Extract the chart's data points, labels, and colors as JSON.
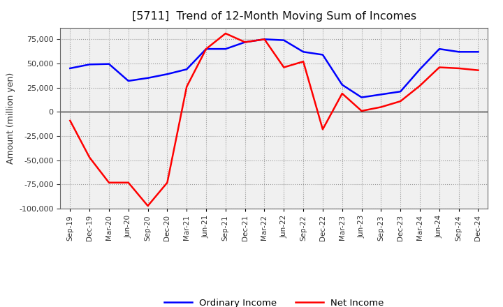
{
  "title": "[5711]  Trend of 12-Month Moving Sum of Incomes",
  "ylabel": "Amount (million yen)",
  "ylim": [
    -100000,
    87000
  ],
  "yticks": [
    -100000,
    -75000,
    -50000,
    -25000,
    0,
    25000,
    50000,
    75000
  ],
  "labels": [
    "Sep-19",
    "Dec-19",
    "Mar-20",
    "Jun-20",
    "Sep-20",
    "Dec-20",
    "Mar-21",
    "Jun-21",
    "Sep-21",
    "Dec-21",
    "Mar-22",
    "Jun-22",
    "Sep-22",
    "Dec-22",
    "Mar-23",
    "Jun-23",
    "Sep-23",
    "Dec-23",
    "Mar-24",
    "Jun-24",
    "Sep-24",
    "Dec-24"
  ],
  "ordinary_income": [
    45000,
    49000,
    49500,
    32000,
    35000,
    39000,
    44000,
    65000,
    65000,
    72000,
    75000,
    74000,
    62000,
    59000,
    28000,
    15000,
    18000,
    21000,
    44000,
    65000,
    62000,
    62000
  ],
  "net_income": [
    -9000,
    -47000,
    -73000,
    -73000,
    -97000,
    -73000,
    26000,
    65000,
    81000,
    72000,
    75000,
    46000,
    52000,
    -18000,
    19000,
    1000,
    5000,
    11000,
    27000,
    46000,
    45000,
    43000
  ],
  "ordinary_color": "#0000ff",
  "net_color": "#ff0000",
  "grid_color": "#999999",
  "bg_color": "#ffffff",
  "plot_bg_color": "#f0f0f0",
  "legend_ordinary": "Ordinary Income",
  "legend_net": "Net Income",
  "linewidth": 1.8
}
